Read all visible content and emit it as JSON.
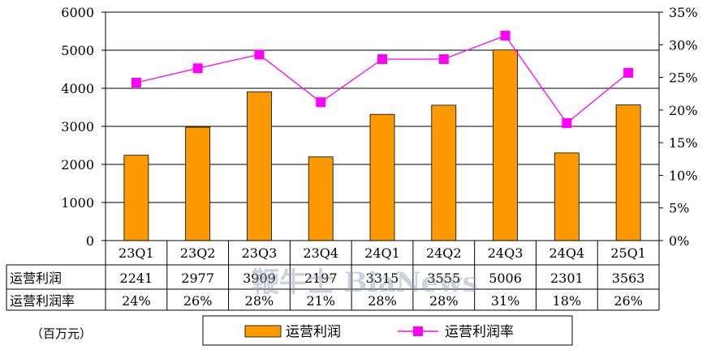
{
  "chart_data": {
    "type": "bar",
    "categories": [
      "23Q1",
      "23Q2",
      "23Q3",
      "23Q4",
      "24Q1",
      "24Q2",
      "24Q3",
      "24Q4",
      "25Q1"
    ],
    "series": [
      {
        "name": "运营利润",
        "type": "bar",
        "axis": "left",
        "color": "#FF9900",
        "values": [
          2241,
          2977,
          3909,
          2197,
          3315,
          3555,
          5006,
          2301,
          3563
        ]
      },
      {
        "name": "运营利润率",
        "type": "line",
        "axis": "right",
        "color": "#FF00FF",
        "values": [
          24.2,
          26.4,
          28.5,
          21.2,
          27.8,
          27.8,
          31.4,
          18.0,
          25.7
        ]
      }
    ],
    "table_rows": [
      {
        "label": "运营利润",
        "cells": [
          "2241",
          "2977",
          "3909",
          "2197",
          "3315",
          "3555",
          "5006",
          "2301",
          "3563"
        ]
      },
      {
        "label": "运营利润率",
        "cells": [
          "24%",
          "26%",
          "28%",
          "21%",
          "28%",
          "28%",
          "31%",
          "18%",
          "26%"
        ]
      }
    ],
    "y_left": {
      "min": 0,
      "max": 6000,
      "ticks": [
        "0",
        "1000",
        "2000",
        "3000",
        "4000",
        "5000",
        "6000"
      ]
    },
    "y_right": {
      "min": 0,
      "max": 35,
      "ticks": [
        "0%",
        "5%",
        "10%",
        "15%",
        "20%",
        "25%",
        "30%",
        "35%"
      ]
    },
    "grid": true,
    "legend_position": "bottom",
    "unit_label": "（百万元）",
    "watermark": "鞭牛士 BiaNews"
  }
}
